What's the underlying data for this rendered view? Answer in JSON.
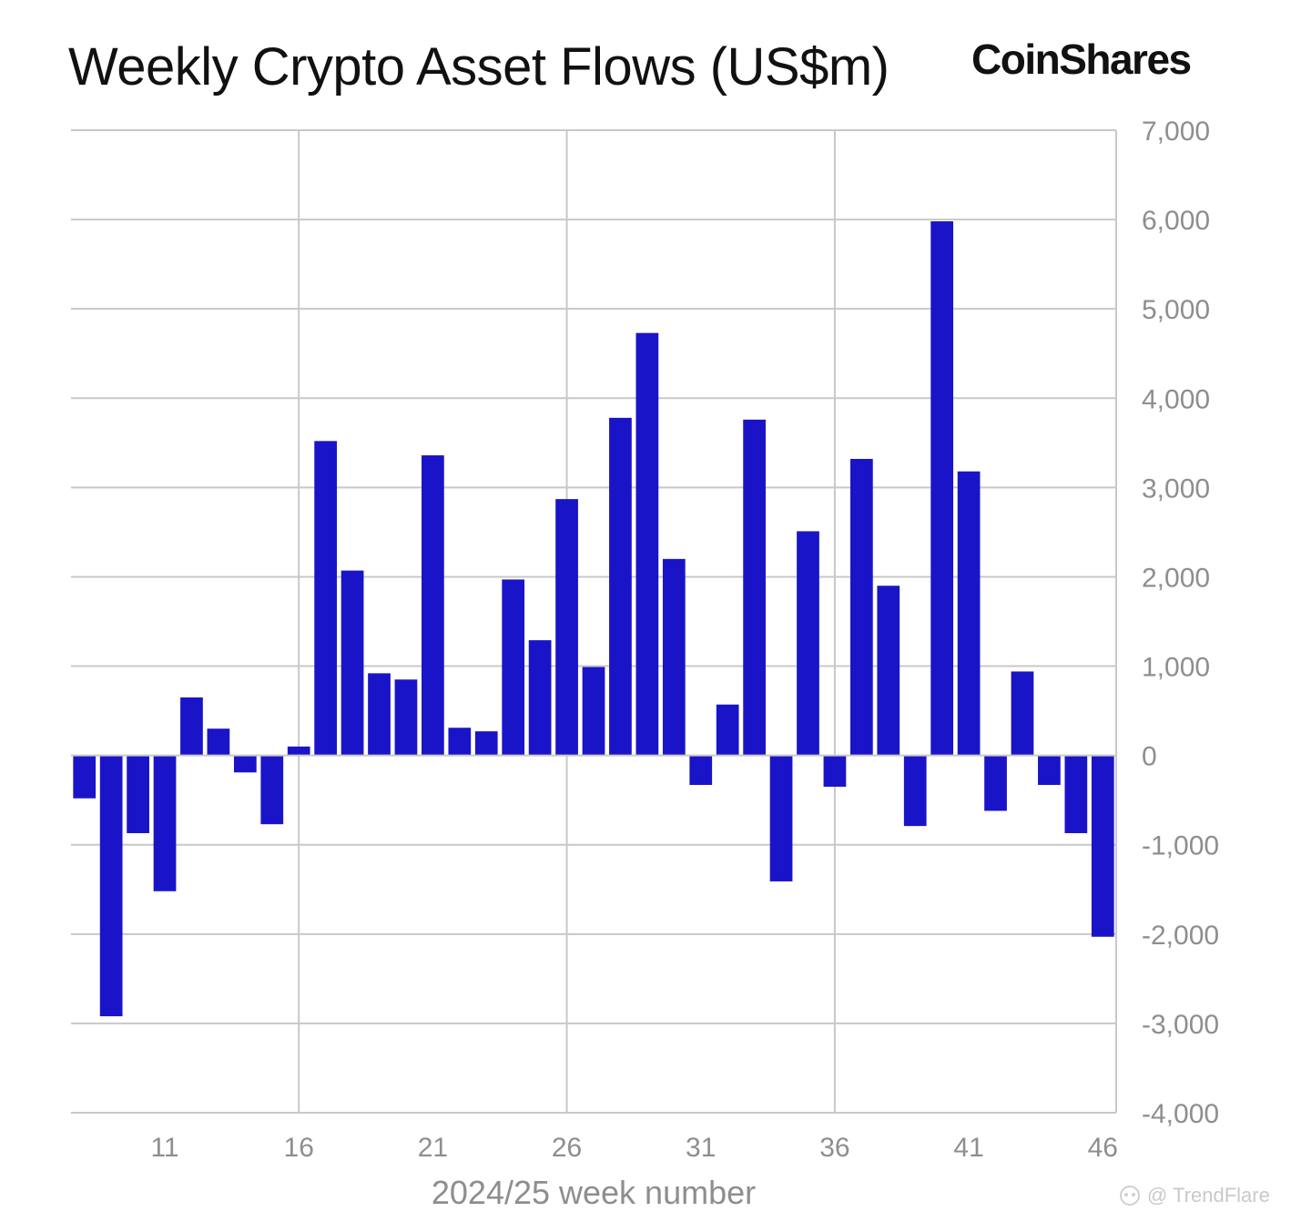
{
  "chart_data": {
    "type": "bar",
    "title": "Weekly Crypto Asset Flows (US$m)",
    "brand": "CoinShares",
    "xlabel": "2024/25 week number",
    "ylabel": "",
    "x": [
      8,
      9,
      10,
      11,
      12,
      13,
      14,
      15,
      16,
      17,
      18,
      19,
      20,
      21,
      22,
      23,
      24,
      25,
      26,
      27,
      28,
      29,
      30,
      31,
      32,
      33,
      34,
      35,
      36,
      37,
      38,
      39,
      40,
      41,
      42,
      43,
      44,
      45,
      46
    ],
    "values": [
      -480,
      -2920,
      -870,
      -1520,
      650,
      300,
      -190,
      -770,
      100,
      3520,
      2070,
      920,
      850,
      3360,
      310,
      270,
      1970,
      1290,
      2870,
      990,
      3780,
      4730,
      2200,
      -330,
      570,
      3760,
      -1410,
      2510,
      -350,
      3320,
      1900,
      -790,
      5980,
      3180,
      -620,
      940,
      -330,
      -870,
      -2030
    ],
    "xticks": [
      "11",
      "16",
      "21",
      "26",
      "31",
      "36",
      "41",
      "46"
    ],
    "xtick_values": [
      11,
      16,
      21,
      26,
      31,
      36,
      41,
      46
    ],
    "yticks": [
      "7,000",
      "6,000",
      "5,000",
      "4,000",
      "3,000",
      "2,000",
      "1,000",
      "0",
      "-1,000",
      "-2,000",
      "-3,000",
      "-4,000"
    ],
    "ytick_values": [
      7000,
      6000,
      5000,
      4000,
      3000,
      2000,
      1000,
      0,
      -1000,
      -2000,
      -3000,
      -4000
    ],
    "ylim": [
      -4000,
      7000
    ],
    "y_axis_position": "right",
    "grid": true,
    "colors": {
      "bar": "#1a14c8",
      "grid": "#c8c8c8",
      "tick_label": "#8e8e8e",
      "title": "#111111"
    }
  },
  "watermark": {
    "text": "@ TrendFlare"
  }
}
